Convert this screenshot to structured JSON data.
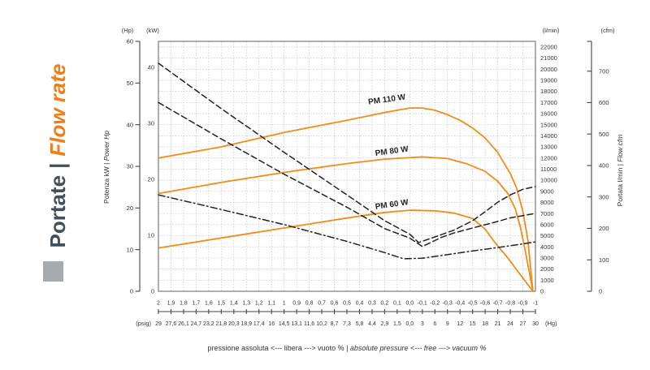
{
  "page": {
    "background": "#FFFFFF"
  },
  "sidebar": {
    "title_primary": "Portate",
    "separator": "|",
    "title_secondary": "Flow rate",
    "primary_color": "#42505C",
    "secondary_color": "#F07D15",
    "square_color": "#A5ABB1"
  },
  "chart_data": {
    "type": "line",
    "title": "Portate | Flow rate",
    "colors": {
      "flow_curve": "#F28C19",
      "power_curve": "#222222",
      "grid": "#C6C6C6",
      "border": "#7A7A7A",
      "axis": "#444444",
      "text": "#333333"
    },
    "x_axis": {
      "range_bar": [
        2,
        -1
      ],
      "ticks_bar": [
        "2",
        "1,9",
        "1,8",
        "1,7",
        "1,6",
        "1,5",
        "1,4",
        "1,3",
        "1,2",
        "1,1",
        "1",
        "0,9",
        "0,8",
        "0,7",
        "0,6",
        "0,5",
        "0,4",
        "0,3",
        "0,2",
        "0,1",
        "0,0",
        "-0,1",
        "-0,2",
        "-0,3",
        "-0,4",
        "-0,5",
        "-0,6",
        "-0,7",
        "-0,8",
        "-0,9",
        "-1"
      ],
      "ticks_secondary": [
        "29",
        "27,6",
        "26,1",
        "24,7",
        "23,2",
        "21,8",
        "20,3",
        "18,9",
        "17,4",
        "16",
        "14,5",
        "13,1",
        "11,6",
        "10,2",
        "8,7",
        "7,3",
        "5,8",
        "4,4",
        "2,9",
        "1,5",
        "0,0",
        "3",
        "6",
        "9",
        "12",
        "15",
        "18",
        "21",
        "24",
        "27",
        "30"
      ],
      "secondary_unit_left": "(psig)",
      "secondary_unit_right": "(Hg)",
      "caption_primary": "pressione assoluta <--- libera --->  vuoto %  |",
      "caption_secondary": "absolute pressure <--- free --->  vacuum %"
    },
    "y_left_axis": {
      "header_hp": "(Hp)",
      "header_kw": "(kW)",
      "hp_ticks": [
        "0",
        "10",
        "20",
        "30",
        "40",
        "50",
        "60"
      ],
      "kw_ticks": [
        "0",
        "10",
        "20",
        "30",
        "40"
      ],
      "hp_range": [
        0,
        60
      ],
      "kw_top": 44.6,
      "title_primary": "Potenza kW | ",
      "title_secondary": "Power Hp"
    },
    "y_right_axis": {
      "header_lmin": "(l/min)",
      "header_cfm": "(cfm)",
      "lmin_ticks": [
        "0",
        "1000",
        "2000",
        "3000",
        "4000",
        "5000",
        "6000",
        "7000",
        "8000",
        "9000",
        "10000",
        "11000",
        "12000",
        "13000",
        "14000",
        "15000",
        "16000",
        "17000",
        "18000",
        "19000",
        "20000",
        "21000",
        "22000"
      ],
      "cfm_ticks": [
        "0",
        "100",
        "200",
        "300",
        "400",
        "500",
        "600",
        "700"
      ],
      "lmin_top": 22500,
      "title_primary": "Portata l/min | ",
      "title_secondary": "Flow cfm"
    },
    "series": [
      {
        "name": "PM 110 W flow",
        "unit": "l/min",
        "line": "solid",
        "color": "#F28C19",
        "label": {
          "text": "PM 110 W",
          "x": 0.18,
          "y": 17050,
          "rot": -8
        },
        "points": [
          [
            2,
            12000
          ],
          [
            1.5,
            13000
          ],
          [
            1,
            14300
          ],
          [
            0.5,
            15400
          ],
          [
            0.2,
            16100
          ],
          [
            0,
            16500
          ],
          [
            -0.1,
            16500
          ],
          [
            -0.2,
            16300
          ],
          [
            -0.3,
            15900
          ],
          [
            -0.4,
            15400
          ],
          [
            -0.5,
            14700
          ],
          [
            -0.6,
            13800
          ],
          [
            -0.7,
            12500
          ],
          [
            -0.8,
            10600
          ],
          [
            -0.85,
            9300
          ],
          [
            -0.9,
            7200
          ],
          [
            -0.94,
            4600
          ],
          [
            -0.98,
            0
          ]
        ]
      },
      {
        "name": "PM 80 W flow",
        "unit": "l/min",
        "line": "solid",
        "color": "#F28C19",
        "label": {
          "text": "PM 80 W",
          "x": 0.14,
          "y": 12400,
          "rot": -8
        },
        "points": [
          [
            2,
            8800
          ],
          [
            1.5,
            9800
          ],
          [
            1,
            10700
          ],
          [
            0.5,
            11500
          ],
          [
            0.2,
            11900
          ],
          [
            -0.1,
            12100
          ],
          [
            -0.3,
            11950
          ],
          [
            -0.45,
            11500
          ],
          [
            -0.6,
            10800
          ],
          [
            -0.7,
            9900
          ],
          [
            -0.78,
            8800
          ],
          [
            -0.84,
            7400
          ],
          [
            -0.88,
            5800
          ],
          [
            -0.92,
            3600
          ],
          [
            -0.98,
            0
          ]
        ]
      },
      {
        "name": "PM 60 W flow",
        "unit": "l/min",
        "line": "solid",
        "color": "#F28C19",
        "label": {
          "text": "PM 60 W",
          "x": 0.14,
          "y": 7600,
          "rot": -8
        },
        "points": [
          [
            2,
            3900
          ],
          [
            1.5,
            4800
          ],
          [
            1,
            5700
          ],
          [
            0.5,
            6600
          ],
          [
            0.2,
            7100
          ],
          [
            0,
            7300
          ],
          [
            -0.2,
            7250
          ],
          [
            -0.35,
            7050
          ],
          [
            -0.5,
            6550
          ],
          [
            -0.6,
            5600
          ],
          [
            -0.67,
            4500
          ],
          [
            -0.78,
            3000
          ],
          [
            -0.86,
            1800
          ],
          [
            -0.92,
            900
          ],
          [
            -0.98,
            0
          ]
        ]
      },
      {
        "name": "PM 110 W power",
        "unit": "kW",
        "line": "dashed",
        "color": "#222222",
        "label": null,
        "points": [
          [
            2,
            40.7
          ],
          [
            1.5,
            32.6
          ],
          [
            1,
            24.8
          ],
          [
            0.5,
            17.2
          ],
          [
            0.2,
            12.6
          ],
          [
            0,
            10.2
          ],
          [
            -0.07,
            8.7
          ],
          [
            -0.2,
            9.7
          ],
          [
            -0.35,
            10.9
          ],
          [
            -0.5,
            12.6
          ],
          [
            -0.6,
            14.2
          ],
          [
            -0.7,
            15.9
          ],
          [
            -0.8,
            17.2
          ],
          [
            -0.9,
            18.2
          ],
          [
            -1,
            18.7
          ]
        ]
      },
      {
        "name": "PM 80 W power",
        "unit": "kW",
        "line": "dashed",
        "color": "#222222",
        "label": null,
        "points": [
          [
            2,
            33.7
          ],
          [
            1.5,
            27.2
          ],
          [
            1,
            20.9
          ],
          [
            0.5,
            15.0
          ],
          [
            0.2,
            11.2
          ],
          [
            0,
            9.5
          ],
          [
            -0.1,
            8.0
          ],
          [
            -0.25,
            9.6
          ],
          [
            -0.35,
            10.4
          ],
          [
            -0.5,
            11.3
          ],
          [
            -0.67,
            12.3
          ],
          [
            -0.8,
            13.1
          ],
          [
            -1,
            13.9
          ]
        ]
      },
      {
        "name": "PM 60 W power",
        "unit": "kW",
        "line": "dashdot",
        "color": "#222222",
        "label": null,
        "points": [
          [
            2,
            17.2
          ],
          [
            1.5,
            14.6
          ],
          [
            1,
            11.9
          ],
          [
            0.5,
            8.9
          ],
          [
            0.2,
            6.9
          ],
          [
            0.05,
            5.8
          ],
          [
            -0.1,
            5.9
          ],
          [
            -0.35,
            6.7
          ],
          [
            -0.5,
            7.2
          ],
          [
            -0.7,
            7.8
          ],
          [
            -0.85,
            8.3
          ],
          [
            -1,
            8.8
          ]
        ]
      }
    ]
  }
}
